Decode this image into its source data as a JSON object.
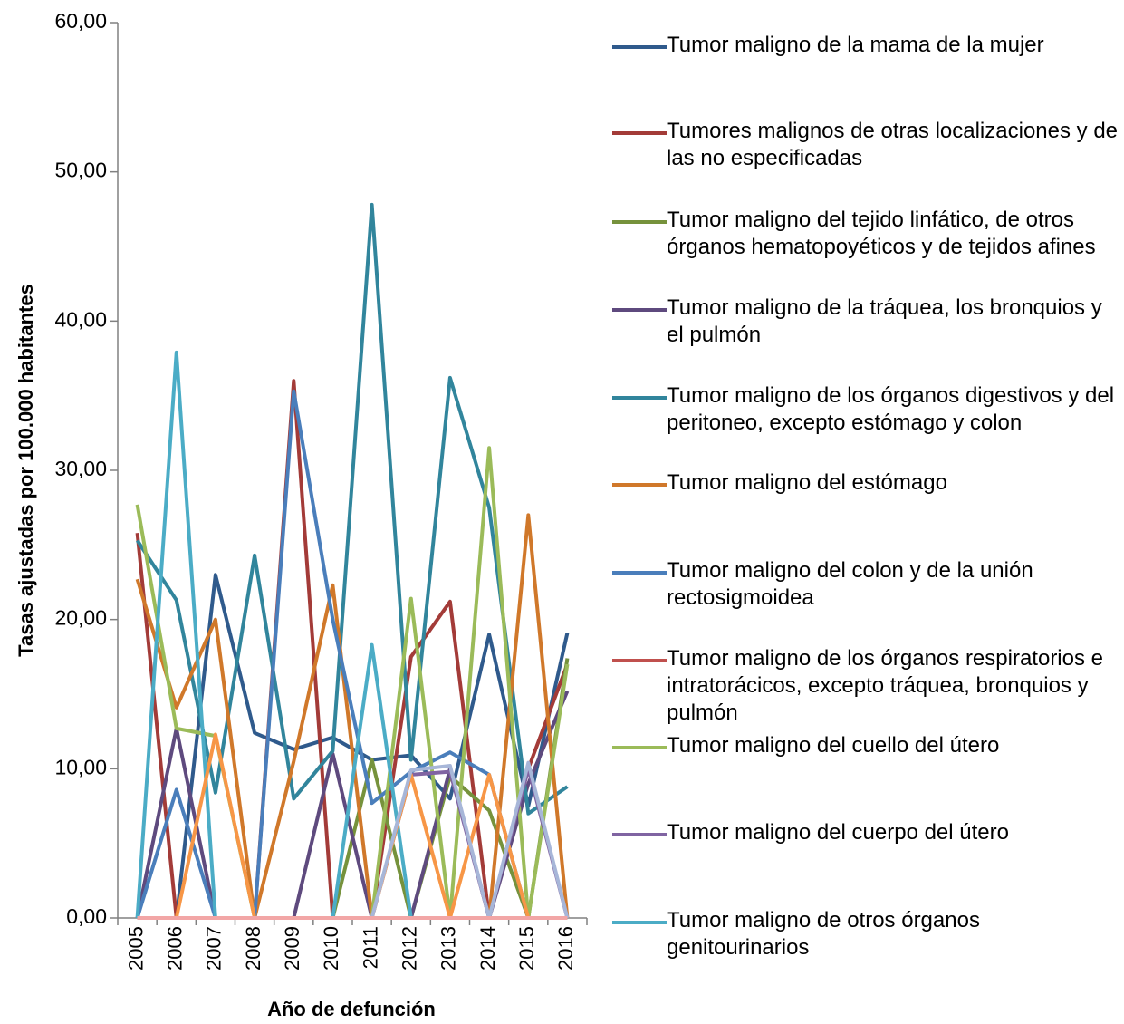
{
  "chart_data": {
    "type": "line",
    "y_label": "Tasas ajustadas por 100.000 habitantes",
    "x_label": "Año de defunción",
    "categories": [
      "2005",
      "2006",
      "2007",
      "2008",
      "2009",
      "2010",
      "2011",
      "2012",
      "2013",
      "2014",
      "2015",
      "2016"
    ],
    "ylim": [
      0,
      60
    ],
    "yticks": [
      {
        "value": 0,
        "label": "0,00"
      },
      {
        "value": 10,
        "label": "10,00"
      },
      {
        "value": 20,
        "label": "20,00"
      },
      {
        "value": 30,
        "label": "30,00"
      },
      {
        "value": 40,
        "label": "40,00"
      },
      {
        "value": 50,
        "label": "50,00"
      },
      {
        "value": 60,
        "label": "60,00"
      }
    ],
    "series": [
      {
        "name": "Tumor maligno de la mama de la mujer",
        "color": "#2f5a8c",
        "values": [
          0,
          0,
          23.0,
          12.4,
          11.3,
          12.1,
          10.6,
          10.9,
          8.0,
          19.0,
          7.5,
          19.1
        ]
      },
      {
        "name": "Tumores malignos de otras localizaciones y de las no especificadas",
        "color": "#a33b38",
        "values": [
          25.8,
          0,
          0,
          0,
          36.0,
          0,
          0,
          17.5,
          21.2,
          0,
          10.0,
          17.0
        ]
      },
      {
        "name": "Tumor maligno del tejido linfático, de otros órganos hematopoyéticos y de tejidos afines",
        "color": "#76923c",
        "values": [
          0,
          0,
          0,
          0,
          0,
          0,
          10.6,
          0,
          9.5,
          7.2,
          0,
          17.4
        ]
      },
      {
        "name": "Tumor maligno de la tráquea, los bronquios y el pulmón",
        "color": "#5e4a7e",
        "values": [
          0,
          12.7,
          0,
          0,
          0,
          11.0,
          0,
          0,
          10.0,
          0,
          9.0,
          15.2
        ]
      },
      {
        "name": "Tumor maligno de los órganos digestivos y del peritoneo, excepto estómago y colon",
        "color": "#31859c",
        "values": [
          25.3,
          21.3,
          8.4,
          24.3,
          8.0,
          11.2,
          47.8,
          10.6,
          36.2,
          27.5,
          7.0,
          8.8
        ]
      },
      {
        "name": "Tumor maligno del estómago",
        "color": "#d0782a",
        "values": [
          22.7,
          14.1,
          20.0,
          0,
          10.5,
          22.3,
          0,
          0,
          0,
          0,
          27.0,
          0
        ]
      },
      {
        "name": "Tumor maligno del colon y de la unión rectosigmoidea",
        "color": "#4a7ebb",
        "values": [
          0,
          8.6,
          0,
          0,
          35.3,
          20.0,
          7.7,
          9.8,
          11.1,
          9.6,
          0,
          0
        ]
      },
      {
        "name": "Tumor maligno de los órganos respiratorios e intratorácicos, excepto tráquea, bronquios y pulmón",
        "color": "#c0504d",
        "values": [
          0,
          0,
          0,
          0,
          0,
          0,
          0,
          0,
          0,
          0,
          0,
          0
        ]
      },
      {
        "name": "Tumor maligno del cuello del útero",
        "color": "#9bbb59",
        "values": [
          27.7,
          12.7,
          12.2,
          0,
          0,
          0,
          0,
          21.4,
          0,
          31.5,
          0,
          17.0
        ]
      },
      {
        "name": "Tumor maligno del cuerpo del útero",
        "color": "#8064a2",
        "values": [
          0,
          0,
          0,
          0,
          0,
          0,
          0,
          9.6,
          9.8,
          0,
          10.0,
          0
        ]
      },
      {
        "name": "Tumor maligno de otros órganos genitourinarios",
        "color": "#4bacc6",
        "values": [
          0,
          37.9,
          0,
          0,
          0,
          0,
          18.3,
          0,
          0,
          0,
          0,
          0
        ]
      },
      {
        "color": "#f79646",
        "values": [
          0,
          0,
          12.3,
          0,
          0,
          0,
          0,
          9.6,
          0,
          9.6,
          0,
          0
        ]
      },
      {
        "color": "#a7b6d8",
        "values": [
          0,
          0,
          0,
          0,
          0,
          0,
          0,
          9.9,
          10.2,
          0,
          10.4,
          0
        ]
      },
      {
        "color": "#f2a6a6",
        "values": [
          0,
          0,
          0,
          0,
          0,
          0,
          0,
          0,
          0,
          0,
          0,
          0
        ]
      }
    ]
  }
}
